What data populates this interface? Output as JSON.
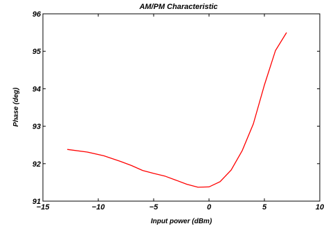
{
  "chart_data": {
    "type": "line",
    "title": "AM/PM Characteristic",
    "xlabel": "Input power (dBm)",
    "ylabel": "Phase (deg)",
    "xlim": [
      -15,
      10
    ],
    "ylim": [
      91,
      96
    ],
    "xticks": [
      -15,
      -10,
      -5,
      0,
      5,
      10
    ],
    "xtick_labels": [
      "−15",
      "−10",
      "−5",
      "0",
      "5",
      "10"
    ],
    "yticks": [
      91,
      92,
      93,
      94,
      95,
      96
    ],
    "ytick_labels": [
      "91",
      "92",
      "93",
      "94",
      "95",
      "96"
    ],
    "grid": false,
    "series": [
      {
        "color": "#ff0000",
        "x": [
          -12.8,
          -11,
          -9.5,
          -8,
          -7,
          -6,
          -5,
          -4,
          -3,
          -2,
          -1,
          0,
          1,
          2,
          3,
          4,
          5,
          6,
          7
        ],
        "y": [
          92.38,
          92.31,
          92.21,
          92.06,
          91.95,
          91.82,
          91.74,
          91.67,
          91.56,
          91.45,
          91.37,
          91.38,
          91.52,
          91.83,
          92.35,
          93.06,
          94.1,
          95.02,
          95.5
        ]
      }
    ]
  }
}
